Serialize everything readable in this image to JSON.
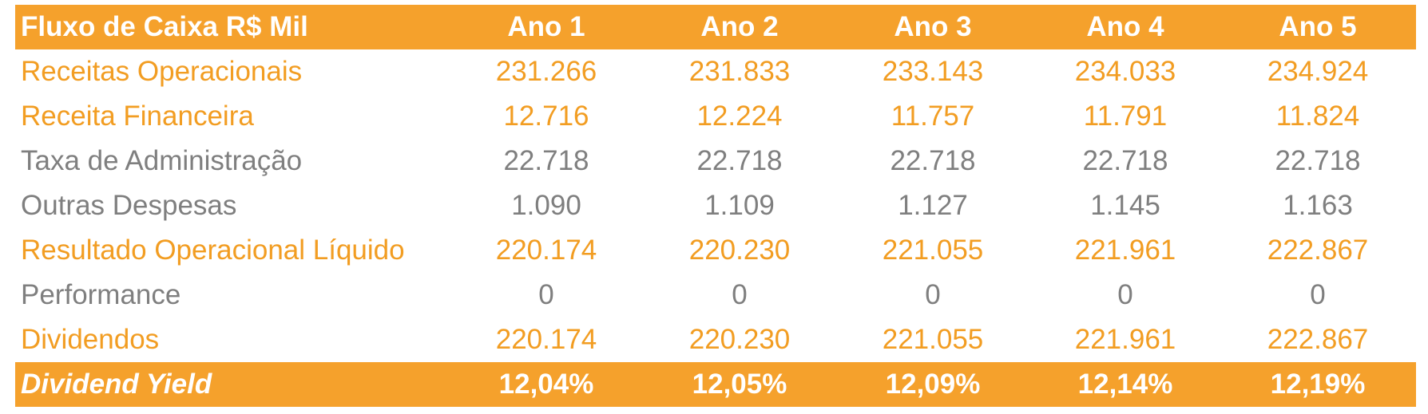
{
  "table": {
    "header": [
      "Fluxo de Caixa R$ Mil",
      "Ano 1",
      "Ano 2",
      "Ano 3",
      "Ano 4",
      "Ano 5"
    ],
    "rows": [
      [
        "Receitas Operacionais",
        "231.266",
        "231.833",
        "233.143",
        "234.033",
        "234.924"
      ],
      [
        "Receita Financeira",
        "12.716",
        "12.224",
        "11.757",
        "11.791",
        "11.824"
      ],
      [
        "Taxa de Administração",
        "22.718",
        "22.718",
        "22.718",
        "22.718",
        "22.718"
      ],
      [
        "Outras Despesas",
        "1.090",
        "1.109",
        "1.127",
        "1.145",
        "1.163"
      ],
      [
        "Resultado Operacional Líquido",
        "220.174",
        "220.230",
        "221.055",
        "221.961",
        "222.867"
      ],
      [
        "Performance",
        "0",
        "0",
        "0",
        "0",
        "0"
      ],
      [
        "Dividendos",
        "220.174",
        "220.230",
        "221.055",
        "221.961",
        "222.867"
      ]
    ],
    "footer": [
      "Dividend Yield",
      "12,04%",
      "12,05%",
      "12,09%",
      "12,14%",
      "12,19%"
    ]
  }
}
